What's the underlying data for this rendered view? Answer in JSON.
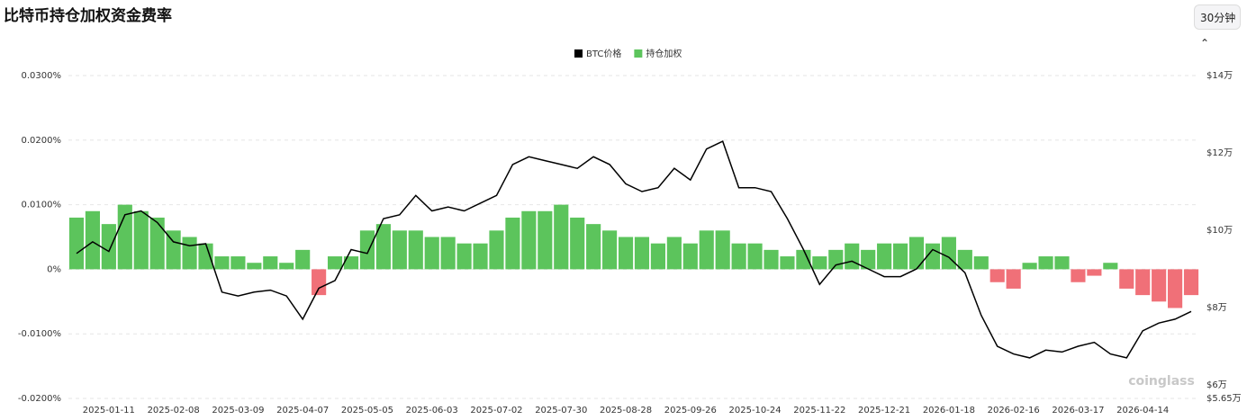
{
  "chart_data": {
    "type": "combo",
    "title": "比特币持仓加权资金费率",
    "watermark": "coinglass",
    "categories": [
      null,
      null,
      "2025-01-11",
      null,
      null,
      null,
      "2025-02-08",
      null,
      null,
      null,
      "2025-03-09",
      null,
      null,
      null,
      "2025-04-07",
      null,
      null,
      null,
      "2025-05-05",
      null,
      null,
      null,
      "2025-06-03",
      null,
      null,
      null,
      "2025-07-02",
      null,
      null,
      null,
      "2025-07-30",
      null,
      null,
      null,
      "2025-08-28",
      null,
      null,
      null,
      "2025-09-26",
      null,
      null,
      null,
      "2025-10-24",
      null,
      null,
      null,
      "2025-11-22",
      null,
      null,
      null,
      "2025-12-21",
      null,
      null,
      null,
      "2026-01-18",
      null,
      null,
      null,
      "2026-02-16",
      null,
      null,
      null,
      "2026-03-17",
      null,
      null,
      null,
      "2026-04-14",
      null,
      null,
      null
    ],
    "series": [
      {
        "name": "BTC价格",
        "type": "line",
        "axis": "y2",
        "color": "#000000",
        "values": [
          94000,
          97000,
          94500,
          104000,
          105000,
          102000,
          97000,
          96000,
          96500,
          84000,
          83000,
          84000,
          84500,
          83000,
          77000,
          85000,
          87000,
          95000,
          94000,
          103000,
          104000,
          109000,
          105000,
          106000,
          105000,
          107000,
          109000,
          117000,
          119000,
          118000,
          117000,
          116000,
          119000,
          117000,
          112000,
          110000,
          111000,
          116000,
          113000,
          121000,
          123000,
          111000,
          111000,
          110000,
          103000,
          95000,
          86000,
          91000,
          92000,
          90000,
          88000,
          88000,
          90000,
          95000,
          93000,
          89000,
          78000,
          70000,
          68000,
          67000,
          69000,
          68500,
          70000,
          71000,
          68000,
          67000,
          74000,
          76000,
          77000,
          79000
        ]
      },
      {
        "name": "持仓加权",
        "type": "bar",
        "color": "#5cc45c",
        "negative_color": "#f07078",
        "values": [
          0.008,
          0.009,
          0.007,
          0.01,
          0.009,
          0.008,
          0.006,
          0.005,
          0.004,
          0.002,
          0.002,
          0.001,
          0.002,
          0.001,
          0.003,
          -0.004,
          0.002,
          0.002,
          0.006,
          0.007,
          0.006,
          0.006,
          0.005,
          0.005,
          0.004,
          0.004,
          0.006,
          0.008,
          0.009,
          0.009,
          0.01,
          0.008,
          0.007,
          0.006,
          0.005,
          0.005,
          0.004,
          0.005,
          0.004,
          0.006,
          0.006,
          0.004,
          0.004,
          0.003,
          0.002,
          0.003,
          0.002,
          0.003,
          0.004,
          0.003,
          0.004,
          0.004,
          0.005,
          0.004,
          0.005,
          0.003,
          0.002,
          -0.002,
          -0.003,
          0.001,
          0.002,
          0.002,
          -0.002,
          -0.001,
          0.001,
          -0.003,
          -0.004,
          -0.005,
          -0.006,
          -0.004
        ]
      }
    ],
    "ylim": [
      -0.02,
      0.03
    ],
    "yticks": [
      {
        "value": 0.03,
        "label": "0.0300%"
      },
      {
        "value": 0.02,
        "label": "0.0200%"
      },
      {
        "value": 0.01,
        "label": "0.0100%"
      },
      {
        "value": 0,
        "label": "0%"
      },
      {
        "value": -0.01,
        "label": "-0.0100%"
      },
      {
        "value": -0.02,
        "label": "-0.0200%"
      }
    ],
    "y2lim": [
      56500,
      140000
    ],
    "y2ticks": [
      {
        "value": 140000,
        "label": "$14万"
      },
      {
        "value": 120000,
        "label": "$12万"
      },
      {
        "value": 100000,
        "label": "$10万"
      },
      {
        "value": 80000,
        "label": "$8万"
      },
      {
        "value": 60000,
        "label": "$6万"
      },
      {
        "value": 56500,
        "label": "$5.65万"
      }
    ],
    "grid": true,
    "legend": "top"
  },
  "controls": {
    "interval": "30分钟"
  }
}
